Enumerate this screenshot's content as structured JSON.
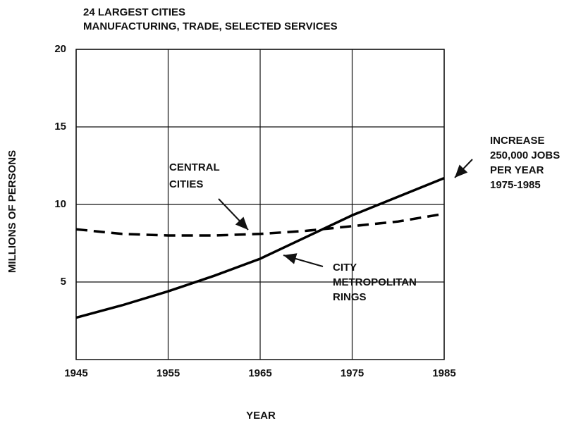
{
  "chart_data": {
    "type": "line",
    "title": [
      "24 LARGEST CITIES",
      "MANUFACTURING, TRADE, SELECTED SERVICES"
    ],
    "xlabel": "YEAR",
    "ylabel": "MILLIONS OF PERSONS",
    "x": [
      1945,
      1950,
      1955,
      1960,
      1965,
      1970,
      1975,
      1980,
      1985
    ],
    "series": [
      {
        "label": [
          "CENTRAL",
          "CITIES"
        ],
        "color": "#000000",
        "dash": true,
        "values": [
          8.4,
          8.1,
          8.0,
          8.0,
          8.1,
          8.3,
          8.6,
          8.9,
          9.4
        ]
      },
      {
        "label": [
          "CITY",
          "METROPOLITAN",
          "RINGS"
        ],
        "color": "#000000",
        "dash": false,
        "values": [
          2.7,
          3.5,
          4.4,
          5.4,
          6.5,
          7.9,
          9.3,
          10.5,
          11.7
        ]
      }
    ],
    "annotation": [
      "INCREASE",
      "250,000 JOBS",
      "PER YEAR",
      "1975-1985"
    ],
    "xlim": [
      1945,
      1985
    ],
    "xticks": [
      1945,
      1955,
      1965,
      1975,
      1985
    ],
    "ylim": [
      0,
      20
    ],
    "yticks": [
      5,
      10,
      15,
      20
    ],
    "grid": true
  }
}
